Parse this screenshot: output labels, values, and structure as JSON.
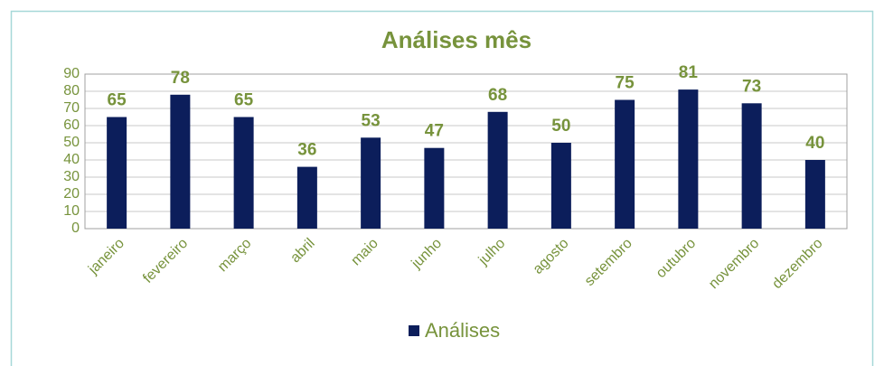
{
  "chart_data": {
    "type": "bar",
    "title": "Análises mês",
    "categories": [
      "janeiro",
      "fevereiro",
      "março",
      "abril",
      "maio",
      "junho",
      "julho",
      "agosto",
      "setembro",
      "outubro",
      "novembro",
      "dezembro"
    ],
    "series": [
      {
        "name": "Análises",
        "color": "#0c1e5b",
        "values": [
          65,
          78,
          65,
          36,
          53,
          47,
          68,
          50,
          75,
          81,
          73,
          40
        ]
      }
    ],
    "ylim": [
      0,
      90
    ],
    "yticks": [
      0,
      10,
      20,
      30,
      40,
      50,
      60,
      70,
      80,
      90
    ],
    "grid": true,
    "legend": "bottom"
  }
}
